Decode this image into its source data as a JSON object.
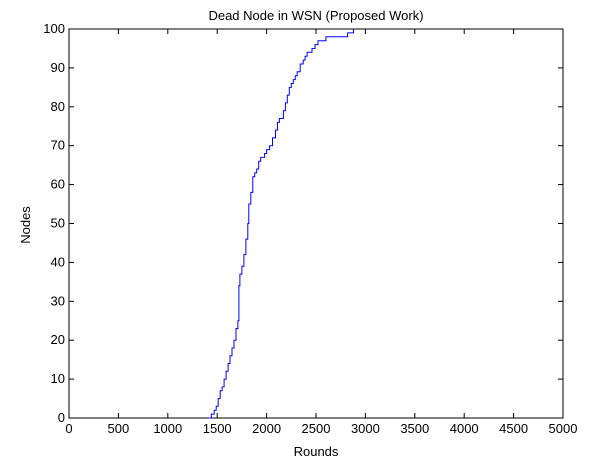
{
  "chart_data": {
    "type": "line",
    "title": "Dead Node in WSN (Proposed Work)",
    "xlabel": "Rounds",
    "ylabel": "Nodes",
    "xlim": [
      0,
      5000
    ],
    "ylim": [
      0,
      100
    ],
    "x_ticks": [
      0,
      500,
      1000,
      1500,
      2000,
      2500,
      3000,
      3500,
      4000,
      4500,
      5000
    ],
    "x_tick_labels": [
      "0",
      "500",
      "1000",
      "1500",
      "2000",
      "2500",
      "3000",
      "3500",
      "4000",
      "4500",
      "5000"
    ],
    "y_ticks": [
      0,
      10,
      20,
      30,
      40,
      50,
      60,
      70,
      80,
      90,
      100
    ],
    "y_tick_labels": [
      "0",
      "10",
      "20",
      "30",
      "40",
      "50",
      "60",
      "70",
      "80",
      "90",
      "100"
    ],
    "grid": false,
    "line_color": "#0000ff",
    "step": true,
    "series": [
      {
        "x": [
          1410,
          1440,
          1470,
          1490,
          1510,
          1530,
          1550,
          1570,
          1590,
          1610,
          1630,
          1650,
          1670,
          1690,
          1710,
          1720,
          1730,
          1750,
          1770,
          1790,
          1810,
          1820,
          1840,
          1860,
          1880,
          1900,
          1920,
          1940,
          1960,
          1980,
          2000,
          2030,
          2060,
          2090,
          2110,
          2130,
          2150,
          2170,
          2190,
          2210,
          2230,
          2250,
          2270,
          2290,
          2310,
          2340,
          2370,
          2390,
          2410,
          2430,
          2460,
          2490,
          2520,
          2560,
          2600,
          2650,
          2750,
          2820,
          2860,
          2880
        ],
        "y": [
          0,
          1,
          2,
          3,
          5,
          7,
          8,
          10,
          12,
          14,
          16,
          18,
          20,
          23,
          25,
          34,
          37,
          39,
          42,
          46,
          50,
          55,
          58,
          62,
          63,
          64,
          66,
          67,
          67,
          68,
          69,
          70,
          72,
          74,
          76,
          77,
          77,
          79,
          81,
          83,
          85,
          86,
          87,
          88,
          89,
          91,
          92,
          93,
          94,
          94,
          95,
          96,
          97,
          97,
          98,
          98,
          98,
          99,
          99,
          100
        ]
      }
    ]
  }
}
